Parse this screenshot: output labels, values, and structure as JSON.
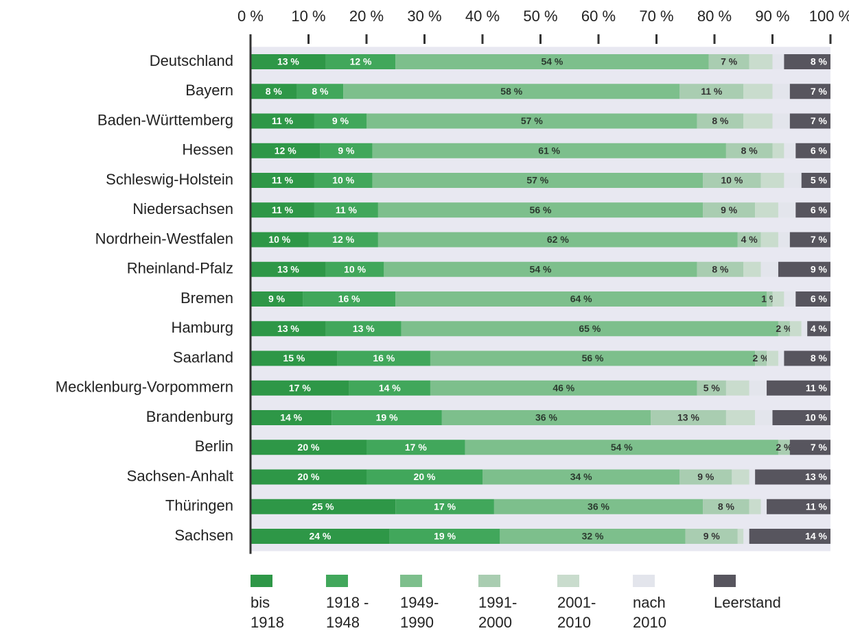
{
  "chart_data": {
    "type": "stacked-bar-horizontal",
    "categories": [
      "Deutschland",
      "Bayern",
      "Baden-Württemberg",
      "Hessen",
      "Schleswig-Holstein",
      "Niedersachsen",
      "Nordrhein-Westfalen",
      "Rheinland-Pfalz",
      "Bremen",
      "Hamburg",
      "Saarland",
      "Mecklenburg-Vorpommern",
      "Brandenburg",
      "Berlin",
      "Sachsen-Anhalt",
      "Thüringen",
      "Sachsen"
    ],
    "xlim": [
      0,
      100
    ],
    "xticks": [
      {
        "value": 0,
        "label": "0 %"
      },
      {
        "value": 10,
        "label": "10 %"
      },
      {
        "value": 20,
        "label": "20 %"
      },
      {
        "value": 30,
        "label": "30 %"
      },
      {
        "value": 40,
        "label": "40 %"
      },
      {
        "value": 50,
        "label": "50 %"
      },
      {
        "value": 60,
        "label": "60 %"
      },
      {
        "value": 70,
        "label": "70 %"
      },
      {
        "value": 80,
        "label": "80 %"
      },
      {
        "value": 90,
        "label": "90 %"
      },
      {
        "value": 100,
        "label": "100 %"
      }
    ],
    "series": [
      {
        "name": "bis 1918",
        "color": "#2e9747",
        "label_color": "#ffffff",
        "values": [
          13,
          8,
          11,
          12,
          11,
          11,
          10,
          13,
          9,
          13,
          15,
          17,
          14,
          20,
          20,
          25,
          24
        ],
        "value_labels": [
          "13 %",
          "8 %",
          "11 %",
          "12 %",
          "11 %",
          "11 %",
          "10 %",
          "13 %",
          "9 %",
          "13 %",
          "15 %",
          "17 %",
          "14 %",
          "20 %",
          "20 %",
          "25 %",
          "24 %"
        ]
      },
      {
        "name": "1918 - 1948",
        "color": "#41a75b",
        "label_color": "#ffffff",
        "values": [
          12,
          8,
          9,
          9,
          10,
          11,
          12,
          10,
          16,
          13,
          16,
          14,
          19,
          17,
          20,
          17,
          19
        ],
        "value_labels": [
          "12 %",
          "8 %",
          "9 %",
          "9 %",
          "10 %",
          "11 %",
          "12 %",
          "10 %",
          "16 %",
          "13 %",
          "16 %",
          "14 %",
          "19 %",
          "17 %",
          "20 %",
          "17 %",
          "19 %"
        ]
      },
      {
        "name": "1949-1990",
        "color": "#7dbf8c",
        "label_color": "#2b3a2f",
        "values": [
          54,
          58,
          57,
          61,
          57,
          56,
          62,
          54,
          64,
          65,
          56,
          46,
          36,
          54,
          34,
          36,
          32
        ],
        "value_labels": [
          "54 %",
          "58 %",
          "57 %",
          "61 %",
          "57 %",
          "56 %",
          "62 %",
          "54 %",
          "64 %",
          "65 %",
          "56 %",
          "46 %",
          "36 %",
          "54 %",
          "34 %",
          "36 %",
          "32 %"
        ]
      },
      {
        "name": "1991-2000",
        "color": "#a9cdb1",
        "label_color": "#333333",
        "values": [
          7,
          11,
          8,
          8,
          10,
          9,
          4,
          8,
          1,
          2,
          2,
          5,
          13,
          2,
          9,
          8,
          9
        ],
        "value_labels": [
          "7 %",
          "11 %",
          "8 %",
          "8 %",
          "10 %",
          "9 %",
          "4 %",
          "8 %",
          "1 %",
          "2 %",
          "2 %",
          "5 %",
          "13 %",
          "2 %",
          "9 %",
          "8 %",
          "9 %"
        ]
      },
      {
        "name": "2001-2010",
        "color": "#c9dccd",
        "values": [
          4,
          5,
          5,
          2,
          4,
          4,
          3,
          3,
          2,
          2,
          2,
          4,
          5,
          0,
          3,
          2,
          1
        ]
      },
      {
        "name": "nach 2010",
        "color": "#e3e5ec",
        "values": [
          2,
          3,
          3,
          2,
          3,
          3,
          2,
          3,
          2,
          1,
          1,
          3,
          3,
          0,
          1,
          1,
          1
        ]
      },
      {
        "name": "Leerstand",
        "color": "#57555e",
        "label_color": "#ffffff",
        "values": [
          8,
          7,
          7,
          6,
          5,
          6,
          7,
          9,
          6,
          4,
          8,
          11,
          10,
          7,
          13,
          11,
          14
        ],
        "value_labels": [
          "8 %",
          "7 %",
          "7 %",
          "6 %",
          "5 %",
          "6 %",
          "7 %",
          "9 %",
          "6 %",
          "4 %",
          "8 %",
          "11 %",
          "10 %",
          "7 %",
          "13 %",
          "11 %",
          "14 %"
        ]
      }
    ]
  }
}
